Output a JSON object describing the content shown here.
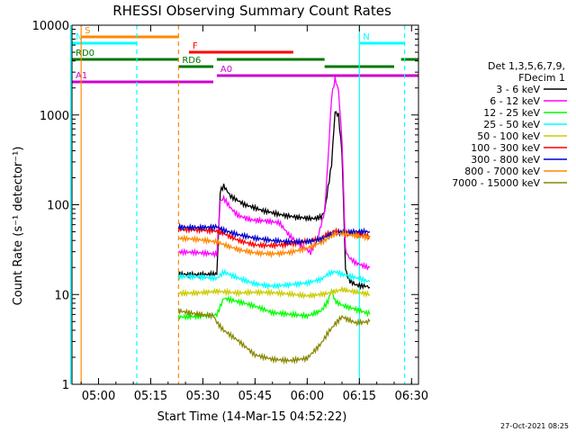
{
  "colors": {
    "axis": "#000000",
    "background": "#ffffff",
    "e1": "#000000",
    "e2": "#ff00ff",
    "e3": "#00ff00",
    "e4": "#00ffff",
    "e5": "#cccc00",
    "e6": "#ff0000",
    "e7": "#0000cc",
    "e8": "#ff8800",
    "e9": "#888800",
    "attenuator": "#007700",
    "flare": "#ff0000",
    "saa": "#ff8800",
    "night": "#00ffff",
    "decim": "#cc00cc"
  },
  "chart_data": {
    "type": "line",
    "title": "RHESSI Observing Summary Count Rates",
    "xlabel": "Start Time (14-Mar-15 04:52:22)",
    "ylabel": "Count Rate (s⁻¹ detector⁻¹)",
    "x_unit": "HH:MM UT",
    "x_range": [
      "04:52:22",
      "06:32:00"
    ],
    "y_scale": "log",
    "y_range": [
      1,
      10000
    ],
    "x_ticks": [
      "05:00",
      "05:15",
      "05:30",
      "05:45",
      "06:00",
      "06:15",
      "06:30"
    ],
    "y_ticks": [
      "1",
      "10",
      "100",
      "1000",
      "10000"
    ],
    "timestamp": "27-Oct-2021 08:25",
    "legend": {
      "title_line1": "Det 1,3,5,6,7,9,",
      "title_line2": "FDecim 1",
      "entries": [
        "3 - 6 keV",
        "6 - 12 keV",
        "12 - 25 keV",
        "25 - 50 keV",
        "50 - 100 keV",
        "100 - 300 keV",
        "300 - 800 keV",
        "800 - 7000 keV",
        "7000 - 15000 keV"
      ]
    },
    "series": [
      {
        "name": "3 - 6 keV",
        "x": [
          "05:23",
          "05:33",
          "05:34",
          "05:35",
          "05:36",
          "05:38",
          "05:42",
          "05:47",
          "05:52",
          "05:57",
          "06:00",
          "06:02",
          "06:04",
          "06:05",
          "06:07",
          "06:08",
          "06:09",
          "06:10",
          "06:11",
          "06:12",
          "06:14",
          "06:18"
        ],
        "y": [
          18,
          17,
          17,
          140,
          160,
          120,
          95,
          82,
          76,
          74,
          74,
          74,
          78,
          90,
          300,
          1150,
          1050,
          400,
          20,
          15,
          13,
          12
        ]
      },
      {
        "name": "6 - 12 keV",
        "x": [
          "05:23",
          "05:33",
          "05:34",
          "05:35",
          "05:36",
          "05:38",
          "05:40",
          "05:44",
          "05:48",
          "05:52",
          "05:55",
          "05:58",
          "06:01",
          "06:03",
          "06:05",
          "06:06",
          "06:07",
          "06:08",
          "06:09",
          "06:10",
          "06:11",
          "06:12",
          "06:14",
          "06:18"
        ],
        "y": [
          28,
          28,
          28,
          110,
          120,
          95,
          80,
          72,
          70,
          65,
          45,
          35,
          28,
          40,
          80,
          300,
          1500,
          2400,
          1800,
          500,
          30,
          25,
          22,
          20
        ]
      },
      {
        "name": "12 - 25 keV",
        "x": [
          "05:23",
          "05:33",
          "05:34",
          "05:36",
          "05:40",
          "05:45",
          "05:50",
          "05:55",
          "06:00",
          "06:04",
          "06:06",
          "06:07",
          "06:08",
          "06:10",
          "06:14",
          "06:18"
        ],
        "y": [
          6,
          6,
          6,
          9,
          8,
          7,
          6,
          6,
          6,
          7,
          9,
          12,
          9,
          8,
          7,
          6
        ]
      },
      {
        "name": "25 - 50 keV",
        "x": [
          "05:23",
          "05:33",
          "05:34",
          "05:36",
          "05:40",
          "05:45",
          "05:50",
          "05:55",
          "06:00",
          "06:04",
          "06:06",
          "06:08",
          "06:10",
          "06:14",
          "06:18"
        ],
        "y": [
          15,
          15,
          15,
          18,
          16,
          14,
          13,
          13,
          13,
          14,
          16,
          17,
          16,
          15,
          14
        ]
      },
      {
        "name": "50 - 100 keV",
        "x": [
          "05:23",
          "05:33",
          "05:34",
          "05:40",
          "05:50",
          "06:00",
          "06:06",
          "06:10",
          "06:14",
          "06:18"
        ],
        "y": [
          11,
          11,
          11,
          10,
          10,
          10,
          11,
          12,
          11,
          10
        ]
      },
      {
        "name": "100 - 300 keV",
        "x": [
          "05:23",
          "05:33",
          "05:34",
          "05:36",
          "05:40",
          "05:45",
          "05:50",
          "05:55",
          "06:00",
          "06:04",
          "06:06",
          "06:08",
          "06:10",
          "06:14",
          "06:18"
        ],
        "y": [
          50,
          50,
          50,
          48,
          42,
          38,
          37,
          37,
          38,
          40,
          45,
          48,
          47,
          46,
          45
        ]
      },
      {
        "name": "300 - 800 keV",
        "x": [
          "05:23",
          "05:33",
          "05:34",
          "05:36",
          "05:40",
          "05:45",
          "05:50",
          "05:55",
          "06:00",
          "06:04",
          "06:06",
          "06:08",
          "06:10",
          "06:14",
          "06:18"
        ],
        "y": [
          60,
          58,
          58,
          52,
          45,
          40,
          38,
          38,
          40,
          44,
          48,
          52,
          52,
          52,
          50
        ]
      },
      {
        "name": "800 - 7000 keV",
        "x": [
          "05:23",
          "05:33",
          "05:34",
          "05:36",
          "05:40",
          "05:45",
          "05:50",
          "05:55",
          "06:00",
          "06:04",
          "06:06",
          "06:08",
          "06:10",
          "06:14",
          "06:18"
        ],
        "y": [
          40,
          38,
          38,
          36,
          33,
          31,
          30,
          30,
          32,
          36,
          40,
          45,
          45,
          44,
          43
        ]
      },
      {
        "name": "7000 - 15000 keV",
        "x": [
          "05:23",
          "05:33",
          "05:34",
          "05:36",
          "05:40",
          "05:45",
          "05:50",
          "05:55",
          "06:00",
          "06:04",
          "06:06",
          "06:08",
          "06:10",
          "06:14",
          "06:18"
        ],
        "y": [
          7,
          6,
          5,
          4,
          3,
          2,
          1.8,
          1.8,
          2,
          3,
          4,
          5,
          6,
          5,
          5
        ]
      }
    ],
    "flag_bars": [
      {
        "label": "S",
        "color_key": "saa",
        "x_start": "04:55",
        "x_end": "05:23",
        "level": 1
      },
      {
        "label": "N",
        "color_key": "night",
        "x_start": "04:52",
        "x_end": "05:11",
        "level": 2
      },
      {
        "label": "N",
        "color_key": "night",
        "x_start": "06:15",
        "x_end": "06:28",
        "level": 2
      },
      {
        "label": "F",
        "color_key": "flare",
        "x_start": "05:26",
        "x_end": "05:56",
        "level": 3
      },
      {
        "label": "RD0",
        "color_key": "attenuator",
        "x_start": "04:52",
        "x_end": "05:23",
        "level": 4
      },
      {
        "label": "",
        "color_key": "attenuator",
        "x_start": "05:34",
        "x_end": "06:05",
        "level": 4
      },
      {
        "label": "",
        "color_key": "attenuator",
        "x_start": "06:27",
        "x_end": "06:32",
        "level": 4
      },
      {
        "label": "RD6",
        "color_key": "attenuator",
        "x_start": "05:23",
        "x_end": "05:33",
        "level": 5
      },
      {
        "label": "",
        "color_key": "attenuator",
        "x_start": "06:05",
        "x_end": "06:25",
        "level": 5
      },
      {
        "label": "A0",
        "color_key": "decim",
        "x_start": "05:34",
        "x_end": "06:32",
        "level": 6
      },
      {
        "label": "A1",
        "color_key": "decim",
        "x_start": "04:52",
        "x_end": "05:33",
        "level": 7
      }
    ],
    "markers": [
      {
        "color_key": "night",
        "x": "04:52",
        "style": "solid"
      },
      {
        "color_key": "saa",
        "x": "04:55",
        "style": "solid"
      },
      {
        "color_key": "night",
        "x": "05:11",
        "style": "dashed"
      },
      {
        "color_key": "saa",
        "x": "05:23",
        "style": "dashed"
      },
      {
        "color_key": "night",
        "x": "06:15",
        "style": "solid"
      },
      {
        "color_key": "night",
        "x": "06:28",
        "style": "dashed"
      }
    ]
  }
}
